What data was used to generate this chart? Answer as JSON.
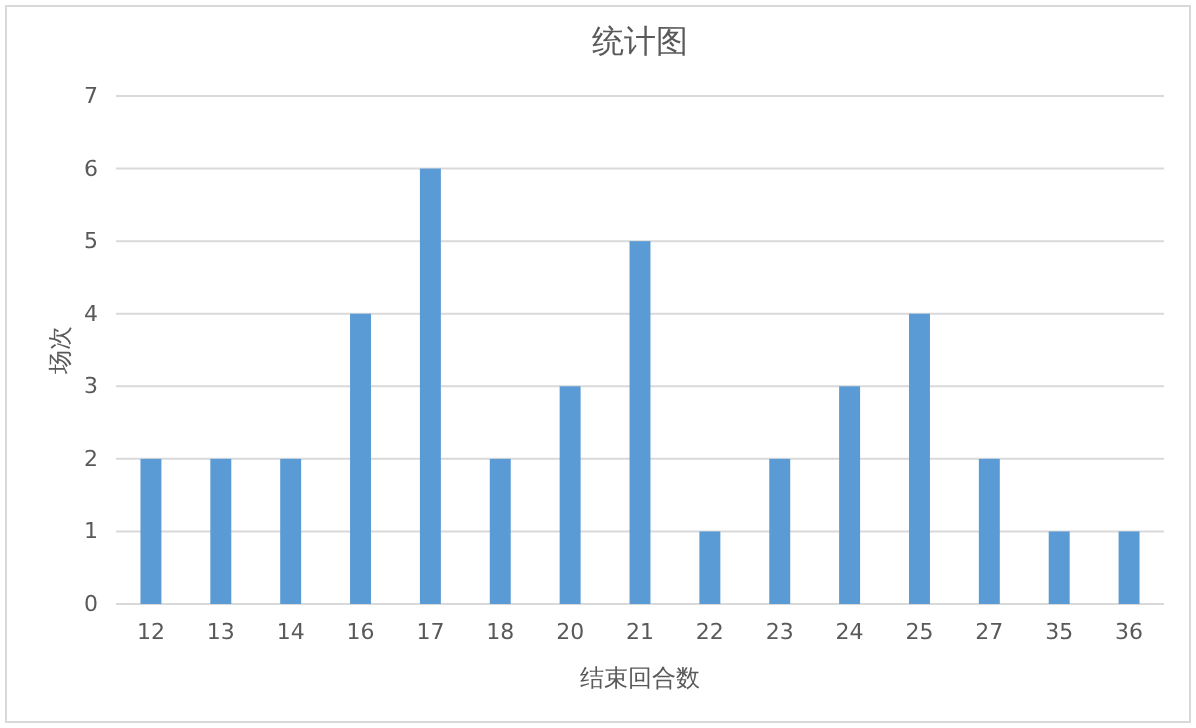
{
  "chart_data": {
    "type": "bar",
    "title": "统计图",
    "xlabel": "结束回合数",
    "ylabel": "场次",
    "categories": [
      "12",
      "13",
      "14",
      "16",
      "17",
      "18",
      "20",
      "21",
      "22",
      "23",
      "24",
      "25",
      "27",
      "35",
      "36"
    ],
    "values": [
      2,
      2,
      2,
      4,
      6,
      2,
      3,
      5,
      1,
      2,
      3,
      4,
      2,
      1,
      1
    ],
    "color": "#5b9bd5",
    "ylim": [
      0,
      7
    ],
    "yticks": [
      0,
      1,
      2,
      3,
      4,
      5,
      6,
      7
    ],
    "grid": "y"
  }
}
